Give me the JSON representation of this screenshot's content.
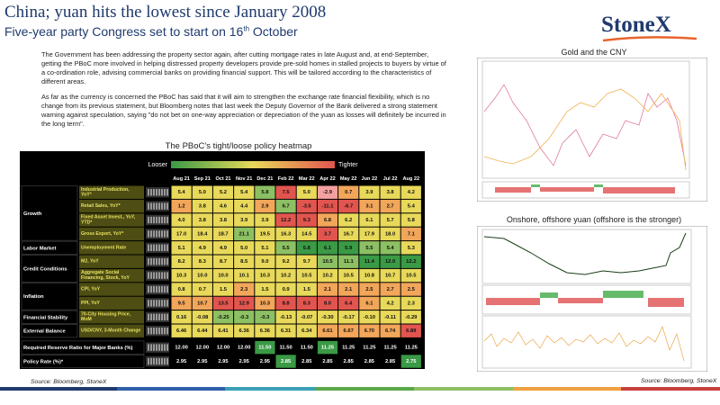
{
  "header": {
    "title": "China; yuan hits the lowest since January 2008",
    "subtitle_before": "Five-year party Congress set to start on 16",
    "subtitle_sup": "th",
    "subtitle_after": " October",
    "logo": "StoneX"
  },
  "paragraphs": [
    "The Government  has been addressing the property sector again, after cutting mortgage rates in late August and, at end-September, getting the PBoC more involved  in helping distressed property developers provide pre-sold homes in stalled projects to buyers by virtue of a co-ordination role, advising  commercial banks on providing financial support. This will be tailored according to the characteristics of different areas.",
    "As far as the currency is concerned the PBoC has said that it will aim to strengthen the exchange rate financial flexibility, which is no change from its previous statement, but Bloomberg notes that last week the Deputy Governor of the Bank delivered  a strong statement  warning against speculation, saying \"do not bet on one-way appreciation or depreciation of the yuan as losses will definitely be incurred in the long term\"."
  ],
  "heatmap": {
    "title": "The PBoC's tight/loose policy heatmap",
    "legend_left": "Looser",
    "legend_right": "Tighter",
    "columns": [
      "Aug 21",
      "Sep 21",
      "Oct 21",
      "Nov 21",
      "Dec 21",
      "Feb 22",
      "Mar 22",
      "Apr 22",
      "May 22",
      "Jun 22",
      "Jul 22",
      "Aug 22"
    ],
    "groups": [
      {
        "name": "Growth",
        "rows": [
          {
            "label": "Industrial Production, YoY*",
            "values": [
              "5.4",
              "5.0",
              "5.2",
              "5.4",
              "5.8",
              "7.5",
              "5.0",
              "-2.9",
              "0.7",
              "3.9",
              "3.8",
              "4.2"
            ],
            "colors": [
              "#e8d95a",
              "#e8d95a",
              "#e8d95a",
              "#e8d95a",
              "#8cc063",
              "#e2554f",
              "#e8d95a",
              "#f4a0a0",
              "#f2a65a",
              "#e8d95a",
              "#e8d95a",
              "#e8d95a"
            ]
          },
          {
            "label": "Retail Sales, YoY*",
            "values": [
              "1.2",
              "3.8",
              "4.6",
              "4.4",
              "2.9",
              "6.7",
              "-3.5",
              "-11.1",
              "-6.7",
              "3.1",
              "2.7",
              "5.4"
            ],
            "colors": [
              "#f2a65a",
              "#e8d95a",
              "#e8d95a",
              "#e8d95a",
              "#f2a65a",
              "#8cc063",
              "#e2554f",
              "#e2554f",
              "#e2554f",
              "#f2a65a",
              "#f2a65a",
              "#e8d95a"
            ]
          },
          {
            "label": "Fixed Asset Invest., YoY, YTD*",
            "values": [
              "4.0",
              "3.8",
              "3.8",
              "3.9",
              "3.9",
              "12.2",
              "9.3",
              "6.8",
              "6.2",
              "6.1",
              "5.7",
              "5.8"
            ],
            "colors": [
              "#e8d95a",
              "#e8d95a",
              "#e8d95a",
              "#e8d95a",
              "#e8d95a",
              "#e2554f",
              "#e2554f",
              "#f2a65a",
              "#e8d95a",
              "#e8d95a",
              "#e8d95a",
              "#e8d95a"
            ]
          },
          {
            "label": "Gross Export, YoY*",
            "values": [
              "17.0",
              "18.4",
              "18.7",
              "21.1",
              "19.5",
              "16.3",
              "14.5",
              "3.7",
              "16.7",
              "17.9",
              "18.0",
              "7.1"
            ],
            "colors": [
              "#e8d95a",
              "#e8d95a",
              "#e8d95a",
              "#8cc063",
              "#e8d95a",
              "#e8d95a",
              "#e8d95a",
              "#e2554f",
              "#e8d95a",
              "#e8d95a",
              "#e8d95a",
              "#f2a65a"
            ]
          }
        ]
      },
      {
        "name": "Labor Market",
        "rows": [
          {
            "label": "Unemployment Rate",
            "values": [
              "5.1",
              "4.9",
              "4.9",
              "5.0",
              "5.1",
              "5.5",
              "5.8",
              "6.1",
              "5.9",
              "5.5",
              "5.4",
              "5.3"
            ],
            "colors": [
              "#e8d95a",
              "#e8d95a",
              "#e8d95a",
              "#e8d95a",
              "#e8d95a",
              "#8cc063",
              "#3a9a45",
              "#3a9a45",
              "#3a9a45",
              "#8cc063",
              "#8cc063",
              "#e8d95a"
            ]
          }
        ]
      },
      {
        "name": "Credit Conditions",
        "rows": [
          {
            "label": "M2, YoY",
            "values": [
              "8.2",
              "8.3",
              "8.7",
              "8.5",
              "9.0",
              "9.2",
              "9.7",
              "10.5",
              "11.1",
              "11.4",
              "12.0",
              "12.2"
            ],
            "colors": [
              "#e8d95a",
              "#e8d95a",
              "#e8d95a",
              "#e8d95a",
              "#e8d95a",
              "#e8d95a",
              "#e8d95a",
              "#8cc063",
              "#8cc063",
              "#3a9a45",
              "#3a9a45",
              "#3a9a45"
            ]
          },
          {
            "label": "Aggregate Social Financing, Stock, YoY",
            "values": [
              "10.3",
              "10.0",
              "10.0",
              "10.1",
              "10.3",
              "10.2",
              "10.5",
              "10.2",
              "10.5",
              "10.8",
              "10.7",
              "10.5"
            ],
            "colors": [
              "#e8d95a",
              "#e8d95a",
              "#e8d95a",
              "#e8d95a",
              "#e8d95a",
              "#e8d95a",
              "#e8d95a",
              "#e8d95a",
              "#e8d95a",
              "#e8d95a",
              "#e8d95a",
              "#e8d95a"
            ]
          }
        ]
      },
      {
        "name": "Inflation",
        "rows": [
          {
            "label": "CPI, YoY",
            "values": [
              "0.8",
              "0.7",
              "1.5",
              "2.3",
              "1.5",
              "0.9",
              "1.5",
              "2.1",
              "2.1",
              "2.5",
              "2.7",
              "2.5"
            ],
            "colors": [
              "#e8d95a",
              "#e8d95a",
              "#e8d95a",
              "#f2a65a",
              "#e8d95a",
              "#e8d95a",
              "#e8d95a",
              "#f2a65a",
              "#f2a65a",
              "#f2a65a",
              "#f2a65a",
              "#f2a65a"
            ]
          },
          {
            "label": "PPI, YoY",
            "values": [
              "9.5",
              "10.7",
              "13.5",
              "12.9",
              "10.3",
              "8.8",
              "8.3",
              "8.0",
              "6.4",
              "6.1",
              "4.2",
              "2.3"
            ],
            "colors": [
              "#f2a65a",
              "#f2a65a",
              "#e2554f",
              "#e2554f",
              "#f2a65a",
              "#e2554f",
              "#e2554f",
              "#e2554f",
              "#e2554f",
              "#f2a65a",
              "#e8d95a",
              "#e8d95a"
            ]
          }
        ]
      },
      {
        "name": "Financial Stability",
        "rows": [
          {
            "label": "70-City Housing Price, MoM",
            "values": [
              "0.16",
              "-0.08",
              "-0.25",
              "-0.3",
              "-0.3",
              "-0.13",
              "-0.07",
              "-0.30",
              "-0.17",
              "-0.10",
              "-0.11",
              "-0.29"
            ],
            "colors": [
              "#e8d95a",
              "#e8d95a",
              "#8cc063",
              "#8cc063",
              "#8cc063",
              "#e8d95a",
              "#e8d95a",
              "#e8d95a",
              "#e8d95a",
              "#e8d95a",
              "#e8d95a",
              "#e8d95a"
            ]
          }
        ]
      },
      {
        "name": "External Balance",
        "rows": [
          {
            "label": "USD/CNY, 3-Month Change",
            "values": [
              "6.46",
              "6.44",
              "6.41",
              "6.36",
              "6.36",
              "6.31",
              "6.34",
              "6.61",
              "6.67",
              "6.70",
              "6.74",
              "6.89"
            ],
            "colors": [
              "#e8d95a",
              "#e8d95a",
              "#e8d95a",
              "#e8d95a",
              "#e8d95a",
              "#e8d95a",
              "#e8d95a",
              "#f2a65a",
              "#f2a65a",
              "#f2a65a",
              "#f2a65a",
              "#e2554f"
            ]
          }
        ]
      }
    ],
    "policy_rows": [
      {
        "label": "Required Reserve Ratio for Major Banks (%)",
        "values": [
          "12.00",
          "12.00",
          "12.00",
          "12.00",
          "11.50",
          "11.50",
          "11.50",
          "11.25",
          "11.25",
          "11.25",
          "11.25",
          "11.25"
        ],
        "colors": [
          "#000000",
          "#000000",
          "#000000",
          "#000000",
          "#3a9a45",
          "#000000",
          "#000000",
          "#3a9a45",
          "#000000",
          "#000000",
          "#000000",
          "#000000"
        ]
      },
      {
        "label": "Policy Rate (%)*",
        "values": [
          "2.95",
          "2.95",
          "2.95",
          "2.95",
          "2.95",
          "2.85",
          "2.85",
          "2.85",
          "2.85",
          "2.85",
          "2.85",
          "2.75"
        ],
        "colors": [
          "#000000",
          "#000000",
          "#000000",
          "#000000",
          "#000000",
          "#3a9a45",
          "#000000",
          "#000000",
          "#000000",
          "#000000",
          "#000000",
          "#3a9a45"
        ]
      }
    ],
    "source": "Source: Bloomberg, StoneX"
  },
  "right": {
    "chart1_title": "Gold and the CNY",
    "chart2_title": "Onshore, offshore yuan (offshore is the stronger)",
    "source": "Source: Bloomberg, StoneX"
  }
}
